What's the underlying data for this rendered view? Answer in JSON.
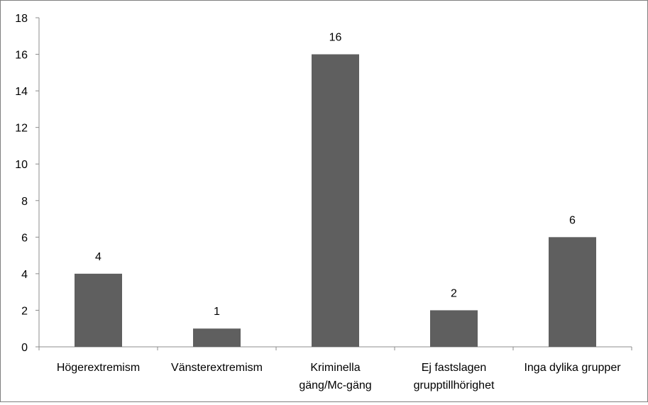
{
  "chart_data": {
    "type": "bar",
    "categories": [
      [
        "Högerextremism"
      ],
      [
        "Vänsterextremism"
      ],
      [
        "Kriminella",
        "gäng/Mc-gäng"
      ],
      [
        "Ej fastslagen",
        "grupptillhörighet"
      ],
      [
        "Inga dylika grupper"
      ]
    ],
    "values": [
      4,
      1,
      16,
      2,
      6
    ],
    "data_labels": [
      "4",
      "1",
      "16",
      "2",
      "6"
    ],
    "yticks": [
      "0",
      "2",
      "4",
      "6",
      "8",
      "10",
      "12",
      "14",
      "16",
      "18"
    ],
    "ylim": [
      0,
      18
    ],
    "title": "",
    "xlabel": "",
    "ylabel": "",
    "grid": false,
    "legend": "none",
    "bar_color": "#5f5f5f",
    "axis_color": "#8c8c8c"
  }
}
